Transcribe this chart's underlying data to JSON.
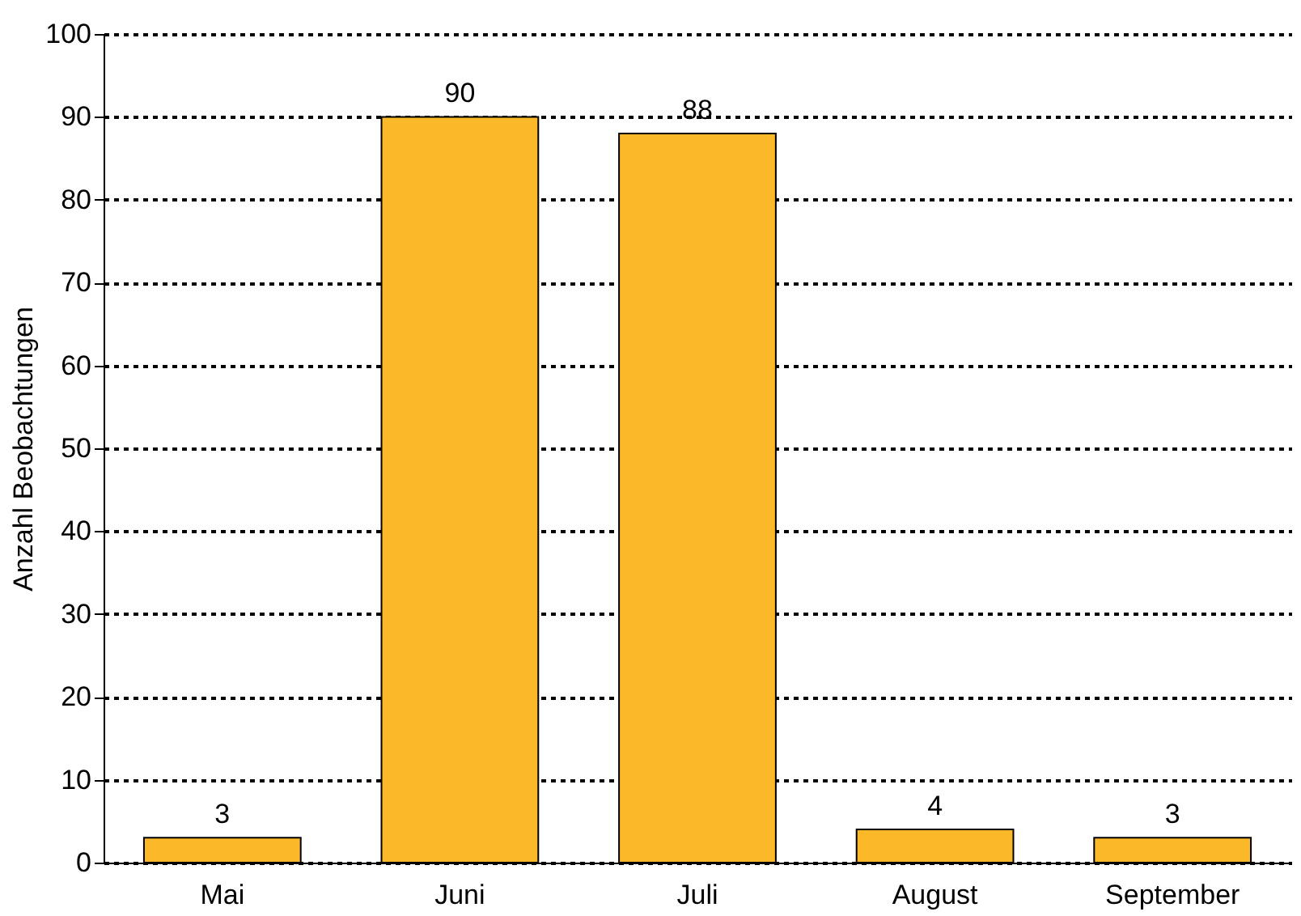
{
  "chart_data": {
    "type": "bar",
    "ylabel": "Anzahl Beobachtungen",
    "categories": [
      "Mai",
      "Juni",
      "Juli",
      "August",
      "September"
    ],
    "values": [
      3,
      90,
      88,
      4,
      3
    ],
    "color": "#fbb829",
    "ylim": [
      0,
      100
    ],
    "yticks": [
      0,
      10,
      20,
      30,
      40,
      50,
      60,
      70,
      80,
      90,
      100
    ],
    "grid": "y",
    "data_labels": true
  }
}
